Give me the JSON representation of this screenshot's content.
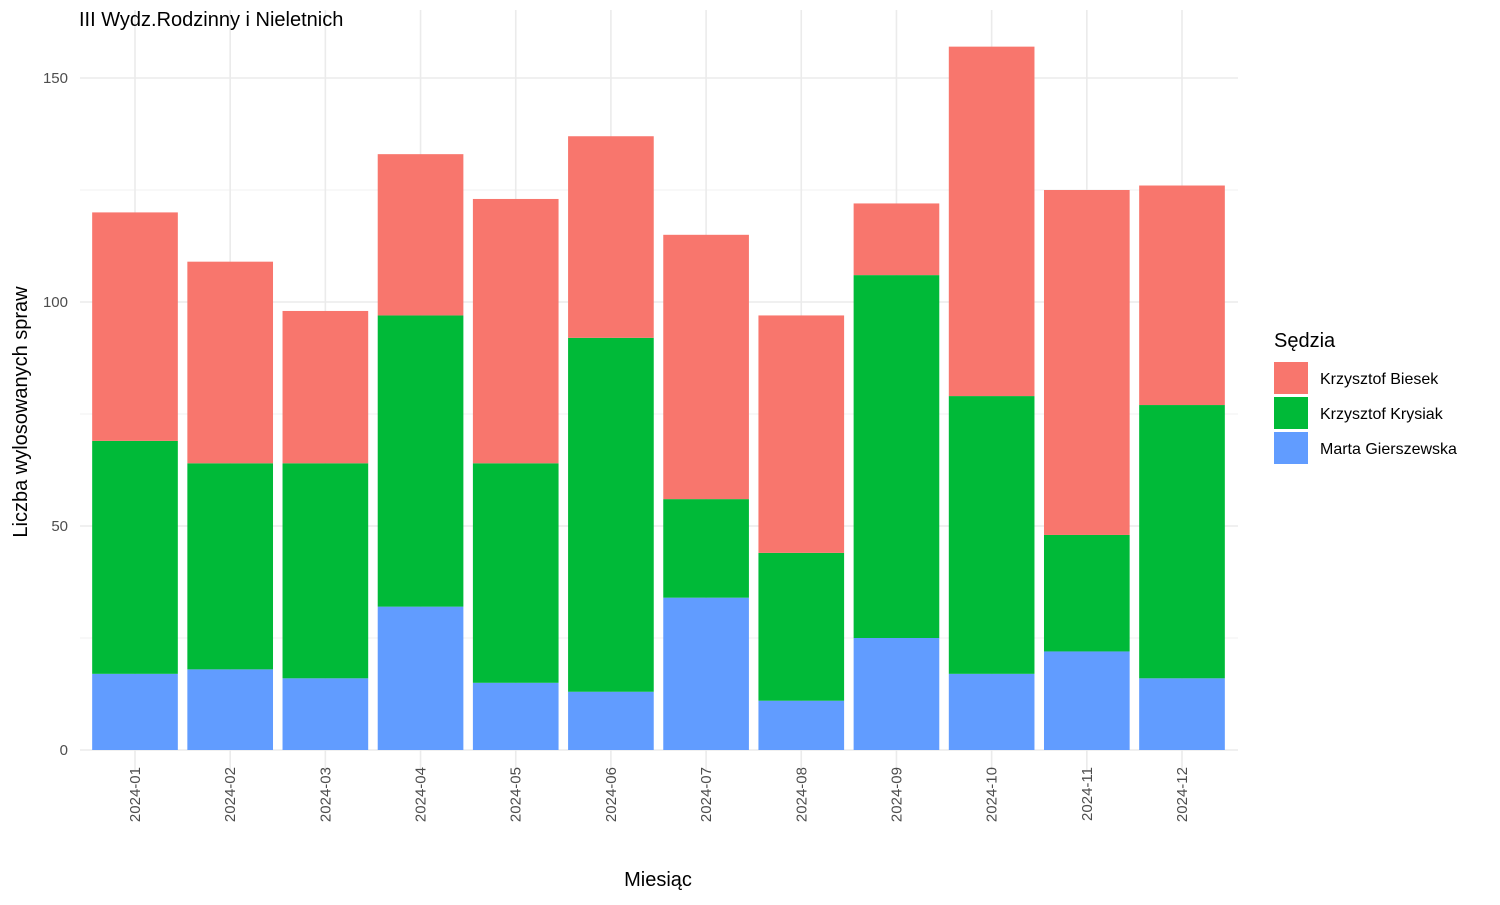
{
  "chart_data": {
    "type": "bar",
    "stacked": true,
    "title": "III Wydz.Rodzinny i Nieletnich",
    "xlabel": "Miesiąc",
    "ylabel": "Liczba wylosowanych spraw",
    "categories": [
      "2024-01",
      "2024-02",
      "2024-03",
      "2024-04",
      "2024-05",
      "2024-06",
      "2024-07",
      "2024-08",
      "2024-09",
      "2024-10",
      "2024-11",
      "2024-12"
    ],
    "series": [
      {
        "name": "Marta Gierszewska",
        "color": "#619CFF",
        "values": [
          17,
          18,
          16,
          32,
          15,
          13,
          34,
          11,
          25,
          17,
          22,
          16
        ]
      },
      {
        "name": "Krzysztof Krysiak",
        "color": "#00BA38",
        "values": [
          52,
          46,
          48,
          65,
          49,
          79,
          22,
          33,
          81,
          62,
          26,
          61
        ]
      },
      {
        "name": "Krzysztof Biesek",
        "color": "#F8766D",
        "values": [
          51,
          45,
          34,
          36,
          59,
          45,
          59,
          53,
          16,
          78,
          77,
          49
        ]
      }
    ],
    "ylim": [
      0,
      160
    ],
    "yticks": [
      0,
      50,
      100,
      150
    ],
    "grid": true,
    "legend": {
      "title": "Sędzia",
      "position": "right",
      "items": [
        "Krzysztof Biesek",
        "Krzysztof Krysiak",
        "Marta Gierszewska"
      ]
    }
  }
}
